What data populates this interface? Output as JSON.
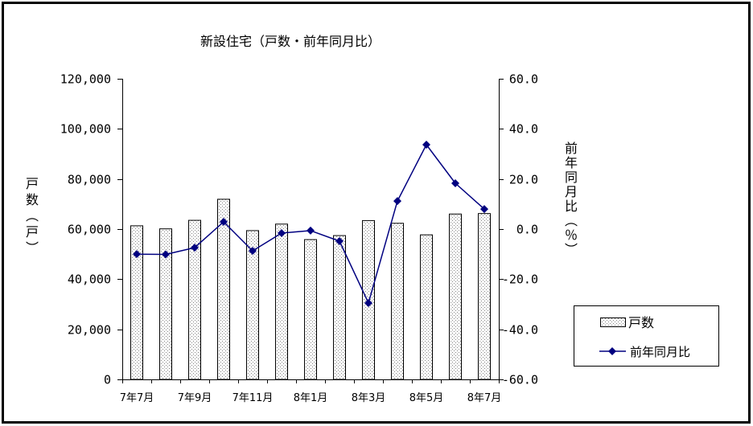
{
  "chart_data": {
    "type": "bar",
    "title": "新設住宅（戸数・前年同月比）",
    "categories": [
      "7年7月",
      "",
      "7年9月",
      "",
      "7年11月",
      "",
      "8年1月",
      "",
      "8年3月",
      "",
      "8年5月",
      "",
      "8年7月"
    ],
    "series": [
      {
        "name": "戸数",
        "type": "bar",
        "axis": "left",
        "values": [
          61300,
          60100,
          63500,
          71900,
          59400,
          62000,
          55800,
          57400,
          63400,
          62300,
          57700,
          66000,
          66200
        ]
      },
      {
        "name": "前年同月比",
        "type": "line",
        "axis": "right",
        "marker": "diamond",
        "values": [
          -10.0,
          -10.1,
          -7.4,
          2.9,
          -8.7,
          -1.6,
          -0.6,
          -4.8,
          -29.5,
          11.2,
          33.7,
          18.3,
          8.0
        ]
      }
    ],
    "ylabel": "戸数（戸）",
    "ylim": [
      0,
      120000
    ],
    "yticks": [
      0,
      20000,
      40000,
      60000,
      80000,
      100000,
      120000
    ],
    "ytick_labels": [
      "0",
      "20,000",
      "40,000",
      "60,000",
      "80,000",
      "100,000",
      "120,000"
    ],
    "y2label": "前年同月比（％）",
    "y2lim": [
      -60,
      60
    ],
    "y2ticks": [
      -60,
      -40,
      -20,
      0,
      20,
      40,
      60
    ],
    "y2tick_labels": [
      "-60.0",
      "-40.0",
      "-20.0",
      "0.0",
      "20.0",
      "40.0",
      "60.0"
    ],
    "grid": false,
    "legend_position": "right",
    "colors": {
      "bar_fill": "#ffffff",
      "bar_pattern": "#808080",
      "bar_outline": "#000000",
      "line": "#000080",
      "marker": "#000080",
      "axis": "#000000"
    }
  }
}
